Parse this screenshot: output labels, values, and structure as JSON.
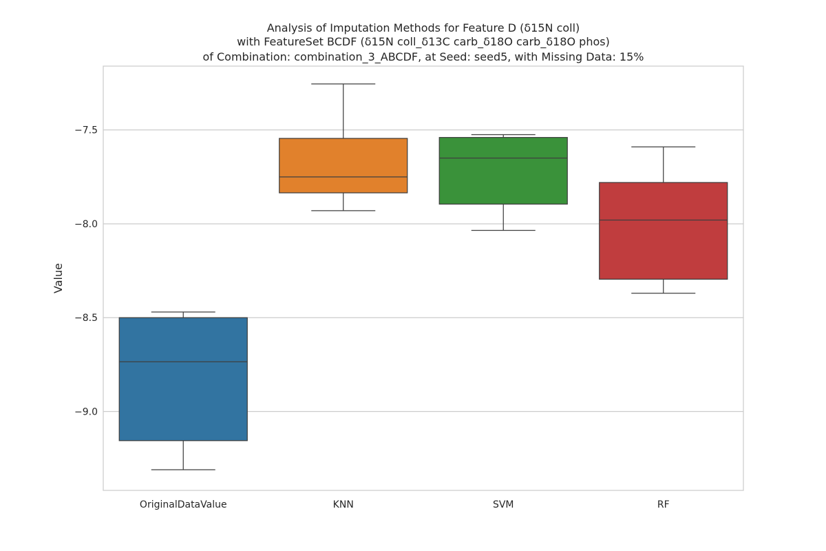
{
  "chart_data": {
    "type": "box",
    "title_lines": [
      "Analysis of Imputation Methods for Feature D (δ15N coll)",
      "with FeatureSet BCDF (δ15N coll_δ13C carb_δ18O carb_δ18O phos)",
      "of Combination: combination_3_ABCDF, at Seed: seed5, with Missing Data: 15%"
    ],
    "xlabel": "",
    "ylabel": "Value",
    "ylim": [
      -9.42,
      -7.16
    ],
    "yticks": [
      -9.0,
      -8.5,
      -8.0,
      -7.5
    ],
    "ytick_labels": [
      "−9.0",
      "−8.5",
      "−8.0",
      "−7.5"
    ],
    "grid": true,
    "categories": [
      "OriginalDataValue",
      "KNN",
      "SVM",
      "RF"
    ],
    "series": [
      {
        "category": "OriginalDataValue",
        "whisker_low": -9.31,
        "q1": -9.155,
        "median": -8.735,
        "q3": -8.5,
        "whisker_high": -8.47,
        "color": "#3274a1"
      },
      {
        "category": "KNN",
        "whisker_low": -7.93,
        "q1": -7.835,
        "median": -7.75,
        "q3": -7.545,
        "whisker_high": -7.255,
        "color": "#e1812c"
      },
      {
        "category": "SVM",
        "whisker_low": -8.035,
        "q1": -7.895,
        "median": -7.65,
        "q3": -7.54,
        "whisker_high": -7.525,
        "color": "#3a923a"
      },
      {
        "category": "RF",
        "whisker_low": -8.37,
        "q1": -8.295,
        "median": -7.98,
        "q3": -7.78,
        "whisker_high": -7.59,
        "color": "#c03d3e"
      }
    ]
  }
}
